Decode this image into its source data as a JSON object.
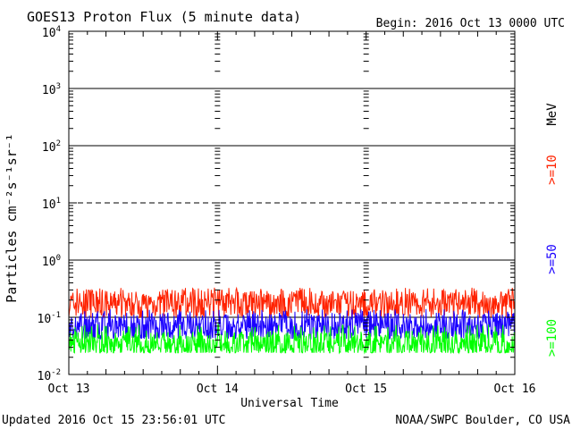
{
  "chart_data": {
    "type": "line",
    "title": "GOES13 Proton Flux (5 minute data)",
    "begin_label": "Begin: 2016 Oct 13 0000 UTC",
    "xlabel": "Universal Time",
    "ylabel": "Particles cm⁻²s⁻¹sr⁻¹",
    "y_scale": "log",
    "ylim": [
      0.01,
      10000
    ],
    "y_ticks": [
      {
        "base": "10",
        "exp": "4"
      },
      {
        "base": "10",
        "exp": "3"
      },
      {
        "base": "10",
        "exp": "2"
      },
      {
        "base": "10",
        "exp": "1"
      },
      {
        "base": "10",
        "exp": "0"
      },
      {
        "base": "10",
        "exp": "-1"
      },
      {
        "base": "10",
        "exp": "-2"
      }
    ],
    "x_ticks": [
      "Oct 13",
      "Oct 14",
      "Oct 15",
      "Oct 16"
    ],
    "x_range_days": [
      0,
      3
    ],
    "unit_label": "MeV",
    "grid": "horizontal decade lines; dashed line at 10^1",
    "series": [
      {
        "name": ">=10",
        "color": "#ff2200",
        "level_approx": 0.17,
        "spread": [
          0.1,
          0.33
        ]
      },
      {
        "name": ">=50",
        "color": "#1a00ff",
        "level_approx": 0.07,
        "spread": [
          0.042,
          0.14
        ]
      },
      {
        "name": ">=100",
        "color": "#00ff00",
        "level_approx": 0.035,
        "spread": [
          0.024,
          0.075
        ]
      }
    ]
  },
  "footer": {
    "updated": "Updated 2016 Oct 15 23:56:01 UTC",
    "credit": "NOAA/SWPC Boulder, CO USA"
  }
}
